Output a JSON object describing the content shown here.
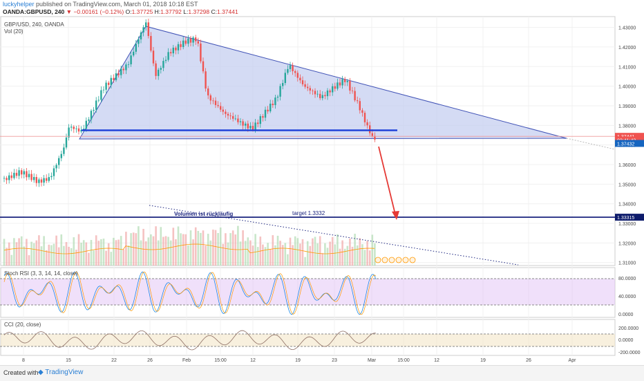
{
  "header": {
    "user": "luckyhelper",
    "published": "published on TradingView.com, March 01, 2018 10:18 EST",
    "symbol": "OANDA:GBPUSD, 240",
    "change": "−0.00161 (−0.12%)",
    "ohlc": {
      "o": "1.37725",
      "h": "1.37792",
      "l": "1.37298",
      "c": "1.37441"
    }
  },
  "pane_labels": {
    "main": "GBP/USD, 240, OANDA",
    "vol": "Vol (20)",
    "stoch": "Stoch RSI (3, 3, 14, 14, close)",
    "cci": "CCI (20, close)"
  },
  "annotations": {
    "volume_note": "Volumen ist rückläufig",
    "target": "target 1.3332"
  },
  "footer": {
    "created_with": "Created with",
    "brand": "TradingView"
  },
  "colors": {
    "up": "#26a69a",
    "down": "#ef5350",
    "triangle": "#3f51b5",
    "fill": "#c5cff0",
    "target_line": "#1a237e",
    "arrow": "#e53935"
  },
  "chart_data": [
    {
      "type": "candlestick",
      "pane": "price",
      "y_ticks": [
        "1.43000",
        "1.42000",
        "1.41000",
        "1.40000",
        "1.39000",
        "1.38000",
        "1.37000",
        "1.36000",
        "1.35000",
        "1.34000",
        "1.33000",
        "1.32000",
        "1.31000"
      ],
      "ylim": [
        1.31,
        1.435
      ],
      "x_ticks": [
        "8",
        "15",
        "22",
        "26",
        "Feb",
        "15:00",
        "12",
        "19",
        "23",
        "Mar",
        "15:00",
        "12",
        "19",
        "26",
        "Apr"
      ],
      "price_labels": {
        "last": "1.37441",
        "countdown": "02:41:42",
        "level": "1.37432",
        "target": "1.33315"
      },
      "pattern": {
        "type": "descending triangle",
        "apex_price": 1.435,
        "base_price": 1.3775
      },
      "target_price": 1.3332,
      "key_points": [
        {
          "x": "Jan 4",
          "close": 1.353
        },
        {
          "x": "Jan 12",
          "close": 1.352
        },
        {
          "x": "Jan 15",
          "close": 1.38
        },
        {
          "x": "Jan 25",
          "close": 1.433
        },
        {
          "x": "Feb 1",
          "close": 1.425
        },
        {
          "x": "Feb 9",
          "close": 1.38
        },
        {
          "x": "Feb 16",
          "close": 1.412
        },
        {
          "x": "Feb 22",
          "close": 1.393
        },
        {
          "x": "Feb 23",
          "close": 1.403
        },
        {
          "x": "Mar 1",
          "close": 1.3744
        }
      ]
    },
    {
      "type": "bar",
      "pane": "volume",
      "series": [
        {
          "name": "Vol (20)"
        }
      ]
    },
    {
      "type": "line",
      "pane": "stoch_rsi",
      "y_ticks": [
        "80.0000",
        "40.0000",
        "0.0000"
      ],
      "bands": [
        20,
        80
      ]
    },
    {
      "type": "line",
      "pane": "cci",
      "y_ticks": [
        "200.0000",
        "0.0000",
        "-200.0000"
      ],
      "bands": [
        -100,
        100
      ]
    }
  ]
}
